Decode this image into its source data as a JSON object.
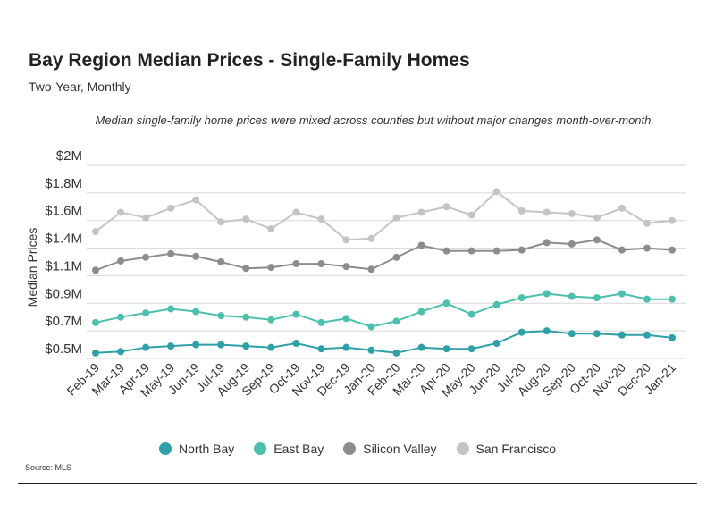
{
  "header": {
    "title": "Bay Region Median Prices - Single-Family Homes",
    "subtitle": "Two-Year, Monthly",
    "note": "Median single-family home prices were mixed across counties but without major changes month-over-month."
  },
  "footer": {
    "source": "Source:  MLS"
  },
  "chart_data": {
    "type": "line",
    "title": "Bay Region Median Prices - Single-Family Homes",
    "subtitle": "Two-Year, Monthly",
    "ylabel": "Median Prices",
    "xlabel": "",
    "y_ticks": [
      "$0.5M",
      "$0.7M",
      "$0.9M",
      "$1.1M",
      "$1.4M",
      "$1.6M",
      "$1.8M",
      "$2M"
    ],
    "grid": "horizontal",
    "legend_position": "bottom",
    "categories": [
      "Feb-19",
      "Mar-19",
      "Apr-19",
      "May-19",
      "Jun-19",
      "Jul-19",
      "Aug-19",
      "Sep-19",
      "Oct-19",
      "Nov-19",
      "Dec-19",
      "Jan-20",
      "Feb-20",
      "Mar-20",
      "Apr-20",
      "May-20",
      "Jun-20",
      "Jul-20",
      "Aug-20",
      "Sep-20",
      "Oct-20",
      "Nov-20",
      "Dec-20",
      "Jan-21"
    ],
    "series": [
      {
        "name": "North Bay",
        "color": "#2f9fa8",
        "values": [
          0.54,
          0.55,
          0.58,
          0.59,
          0.6,
          0.6,
          0.59,
          0.58,
          0.61,
          0.57,
          0.58,
          0.56,
          0.54,
          0.58,
          0.57,
          0.57,
          0.61,
          0.69,
          0.7,
          0.68,
          0.68,
          0.67,
          0.67,
          0.65
        ]
      },
      {
        "name": "East Bay",
        "color": "#4cc0ac",
        "values": [
          0.76,
          0.8,
          0.83,
          0.86,
          0.84,
          0.81,
          0.8,
          0.78,
          0.82,
          0.76,
          0.79,
          0.73,
          0.77,
          0.84,
          0.9,
          0.82,
          0.89,
          0.94,
          0.97,
          0.95,
          0.94,
          0.97,
          0.93,
          0.93
        ]
      },
      {
        "name": "Silicon Valley",
        "color": "#8c8c8c",
        "values": [
          1.16,
          1.26,
          1.3,
          1.34,
          1.31,
          1.25,
          1.18,
          1.19,
          1.23,
          1.23,
          1.2,
          1.17,
          1.3,
          1.42,
          1.37,
          1.37,
          1.37,
          1.38,
          1.44,
          1.43,
          1.46,
          1.38,
          1.4,
          1.38
        ]
      },
      {
        "name": "San Francisco",
        "color": "#c4c4c4",
        "values": [
          1.52,
          1.66,
          1.62,
          1.69,
          1.75,
          1.59,
          1.61,
          1.54,
          1.66,
          1.61,
          1.46,
          1.47,
          1.62,
          1.66,
          1.7,
          1.64,
          1.81,
          1.67,
          1.66,
          1.65,
          1.62,
          1.69,
          1.58,
          1.6
        ]
      }
    ]
  }
}
